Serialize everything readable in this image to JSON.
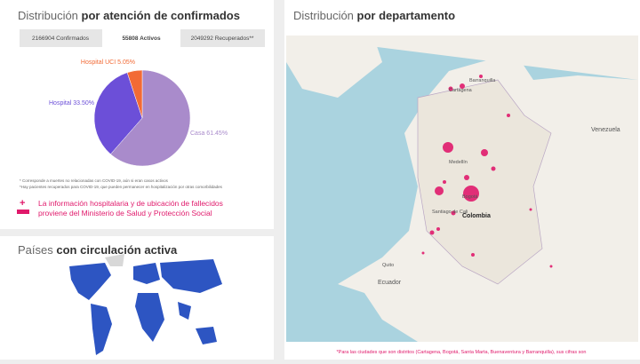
{
  "chart_data": {
    "type": "pie",
    "title_light": "Distribución",
    "title_bold": "por atención de confirmados",
    "tabs": [
      "2166904 Confirmados",
      "55808 Activos",
      "2049292 Recuperados**"
    ],
    "categories": [
      "Casa",
      "Hospital",
      "Hospital UCI"
    ],
    "values": [
      61.45,
      33.5,
      5.05
    ],
    "value_labels": [
      "61.45%",
      "33.50%",
      "5.05%"
    ],
    "colors": [
      "#a98bcb",
      "#6c4fd8",
      "#f26a35"
    ],
    "footnotes": [
      "* Corresponde a muertes no relacionadas con COVID-19, aún si eran casos activos",
      "*Hay pacientes recuperados para COVID-19, que pueden permanecer en hospitalización por otras comorbilidades"
    ],
    "notice": [
      "La información hospitalaria y de ubicación de fallecidos",
      "proviene del Ministerio de Salud y Protección Social"
    ]
  },
  "countries_panel": {
    "title_light": "Países",
    "title_bold": "con circulación activa"
  },
  "map_panel": {
    "title_light": "Distribución",
    "title_bold": "por departamento",
    "labels": [
      "Barranquilla",
      "Cartagena",
      "Venezuela",
      "Medellín",
      "Bogotá",
      "Colombia",
      "Santiago de Cali",
      "Ecuador",
      "Quito"
    ],
    "footer": "*Para las ciudades que son distritos (Cartagena, Bogotá, Santa Marta, Buenaventura y Barranquilla), sus cifras son"
  }
}
